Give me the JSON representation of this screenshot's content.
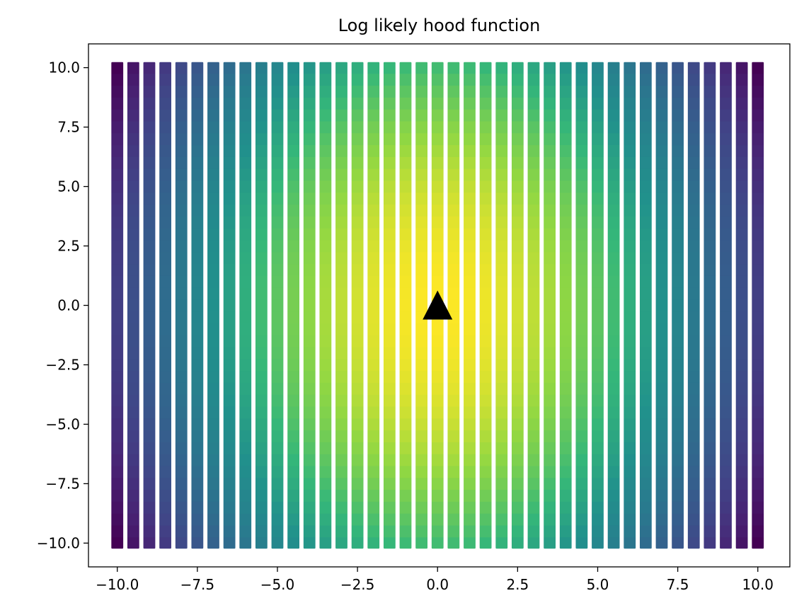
{
  "chart_data": {
    "type": "scatter",
    "title": "Log likely hood function",
    "xlabel": "",
    "ylabel": "",
    "xlim": [
      -10.9,
      11.0
    ],
    "ylim": [
      -11.0,
      11.0
    ],
    "x_ticks": [
      -10.0,
      -7.5,
      -5.0,
      -2.5,
      0.0,
      2.5,
      5.0,
      7.5,
      10.0
    ],
    "x_tick_labels": [
      "−10.0",
      "−7.5",
      "−5.0",
      "−2.5",
      "0.0",
      "2.5",
      "5.0",
      "7.5",
      "10.0"
    ],
    "y_ticks": [
      -10.0,
      -7.5,
      -5.0,
      -2.5,
      0.0,
      2.5,
      5.0,
      7.5,
      10.0
    ],
    "y_tick_labels": [
      "−10.0",
      "−7.5",
      "−5.0",
      "−2.5",
      "0.0",
      "2.5",
      "5.0",
      "7.5",
      "10.0"
    ],
    "grid": false,
    "colormap": "viridis",
    "grid_points": {
      "x_range": [
        -10.0,
        10.0
      ],
      "y_range": [
        -10.0,
        10.0
      ],
      "count_per_axis": 41,
      "marker": "square",
      "value": "log-likelihood, maximum at (0, 0)"
    },
    "max_marker": {
      "x": 0.0,
      "y": 0.0,
      "marker": "triangle",
      "color": "#000000"
    }
  }
}
